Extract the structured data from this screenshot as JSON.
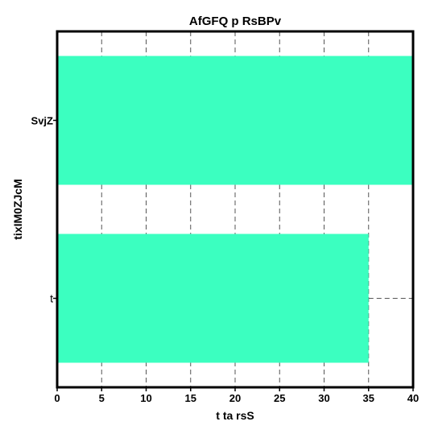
{
  "chart_data": {
    "type": "bar",
    "orientation": "horizontal",
    "title": "AfGFQ p RsBPv",
    "xlabel": "t ta rsS",
    "ylabel": "tixIM0ZJcM",
    "categories": [
      "SvjZ",
      "t"
    ],
    "values": [
      40,
      35
    ],
    "xlim": [
      0,
      40
    ],
    "xticks": [
      "0",
      "5",
      "10",
      "15",
      "20",
      "25",
      "30",
      "35",
      "40"
    ],
    "grid": "vertical dashed",
    "bar_color": "#3bffc0"
  }
}
